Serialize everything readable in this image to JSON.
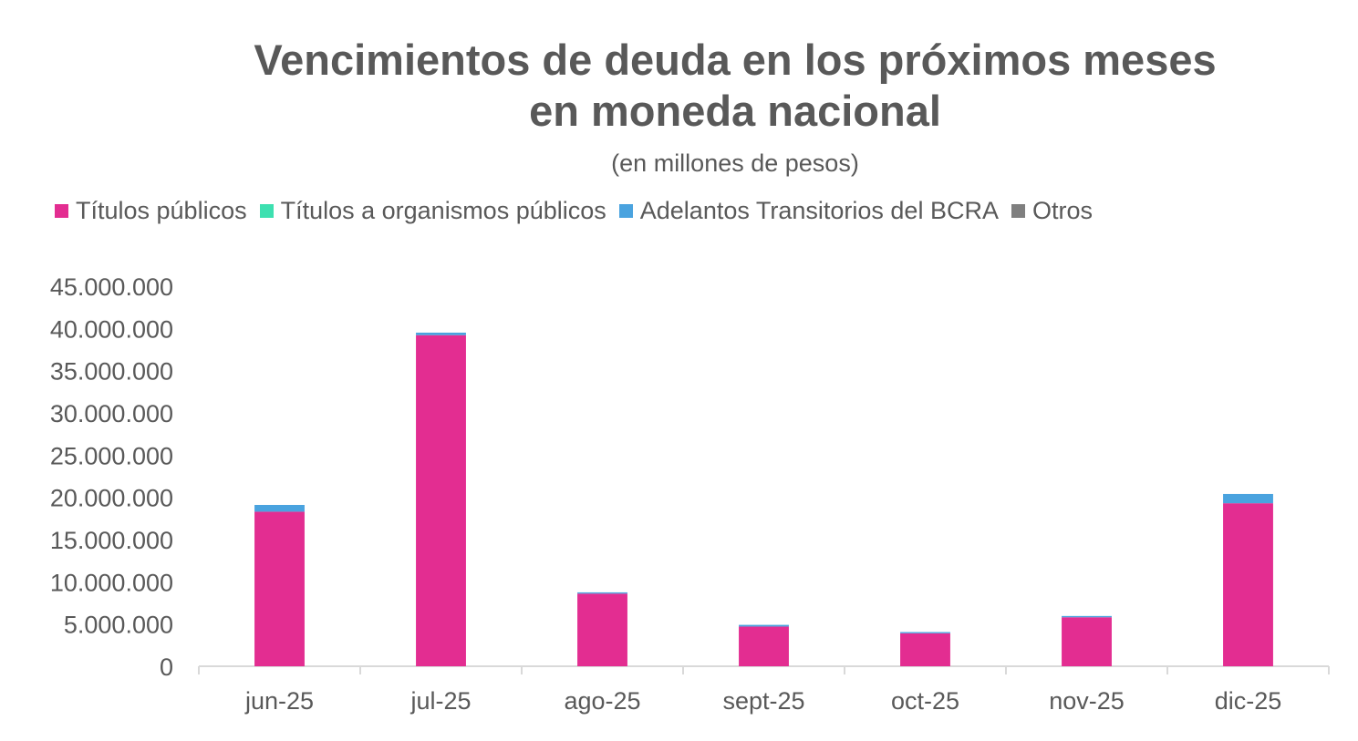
{
  "chart_data": {
    "type": "bar",
    "stacked": true,
    "title": "Vencimientos de deuda en los próximos meses en moneda nacional",
    "title_lines": [
      "Vencimientos de deuda en los próximos meses",
      "en moneda nacional"
    ],
    "subtitle": "(en millones de pesos)",
    "categories": [
      "jun-25",
      "jul-25",
      "ago-25",
      "sept-25",
      "oct-25",
      "nov-25",
      "dic-25"
    ],
    "series": [
      {
        "name": "Títulos públicos",
        "color": "#E32D91",
        "values": [
          18300000,
          39200000,
          8600000,
          4700000,
          3900000,
          5800000,
          19300000
        ]
      },
      {
        "name": "Títulos a organismos públicos",
        "color": "#3DE0B0",
        "values": [
          0,
          0,
          0,
          0,
          0,
          0,
          0
        ]
      },
      {
        "name": "Adelantos Transitorios del BCRA",
        "color": "#4AA3DF",
        "values": [
          800000,
          300000,
          150000,
          200000,
          150000,
          150000,
          1100000
        ]
      },
      {
        "name": "Otros",
        "color": "#7F7F7F",
        "values": [
          0,
          0,
          0,
          0,
          0,
          0,
          0
        ]
      }
    ],
    "y_ticks": [
      "0",
      "5.000.000",
      "10.000.000",
      "15.000.000",
      "20.000.000",
      "25.000.000",
      "30.000.000",
      "35.000.000",
      "40.000.000",
      "45.000.000"
    ],
    "ylim": [
      0,
      45000000
    ],
    "xlabel": "",
    "ylabel": "",
    "legend_position": "top-left",
    "grid": false
  }
}
